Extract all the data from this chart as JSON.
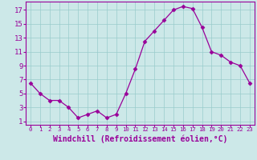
{
  "x": [
    0,
    1,
    2,
    3,
    4,
    5,
    6,
    7,
    8,
    9,
    10,
    11,
    12,
    13,
    14,
    15,
    16,
    17,
    18,
    19,
    20,
    21,
    22,
    23
  ],
  "y": [
    6.5,
    5.0,
    4.0,
    4.0,
    3.0,
    1.5,
    2.0,
    2.5,
    1.5,
    2.0,
    5.0,
    8.5,
    12.5,
    14.0,
    15.5,
    17.0,
    17.5,
    17.2,
    14.5,
    11.0,
    10.5,
    9.5,
    9.0,
    6.5
  ],
  "line_color": "#990099",
  "marker": "D",
  "marker_size": 2.5,
  "bg_color": "#cce8e8",
  "grid_color": "#99cccc",
  "xlabel": "Windchill (Refroidissement éolien,°C)",
  "yticks": [
    1,
    3,
    5,
    7,
    9,
    11,
    13,
    15,
    17
  ],
  "xticks": [
    0,
    1,
    2,
    3,
    4,
    5,
    6,
    7,
    8,
    9,
    10,
    11,
    12,
    13,
    14,
    15,
    16,
    17,
    18,
    19,
    20,
    21,
    22,
    23
  ],
  "ylim": [
    0.5,
    18.2
  ],
  "xlim": [
    -0.5,
    23.5
  ],
  "tick_color": "#990099",
  "label_color": "#990099",
  "xlabel_fontsize": 7.0,
  "ytick_fontsize": 6.5,
  "xtick_fontsize": 5.2
}
